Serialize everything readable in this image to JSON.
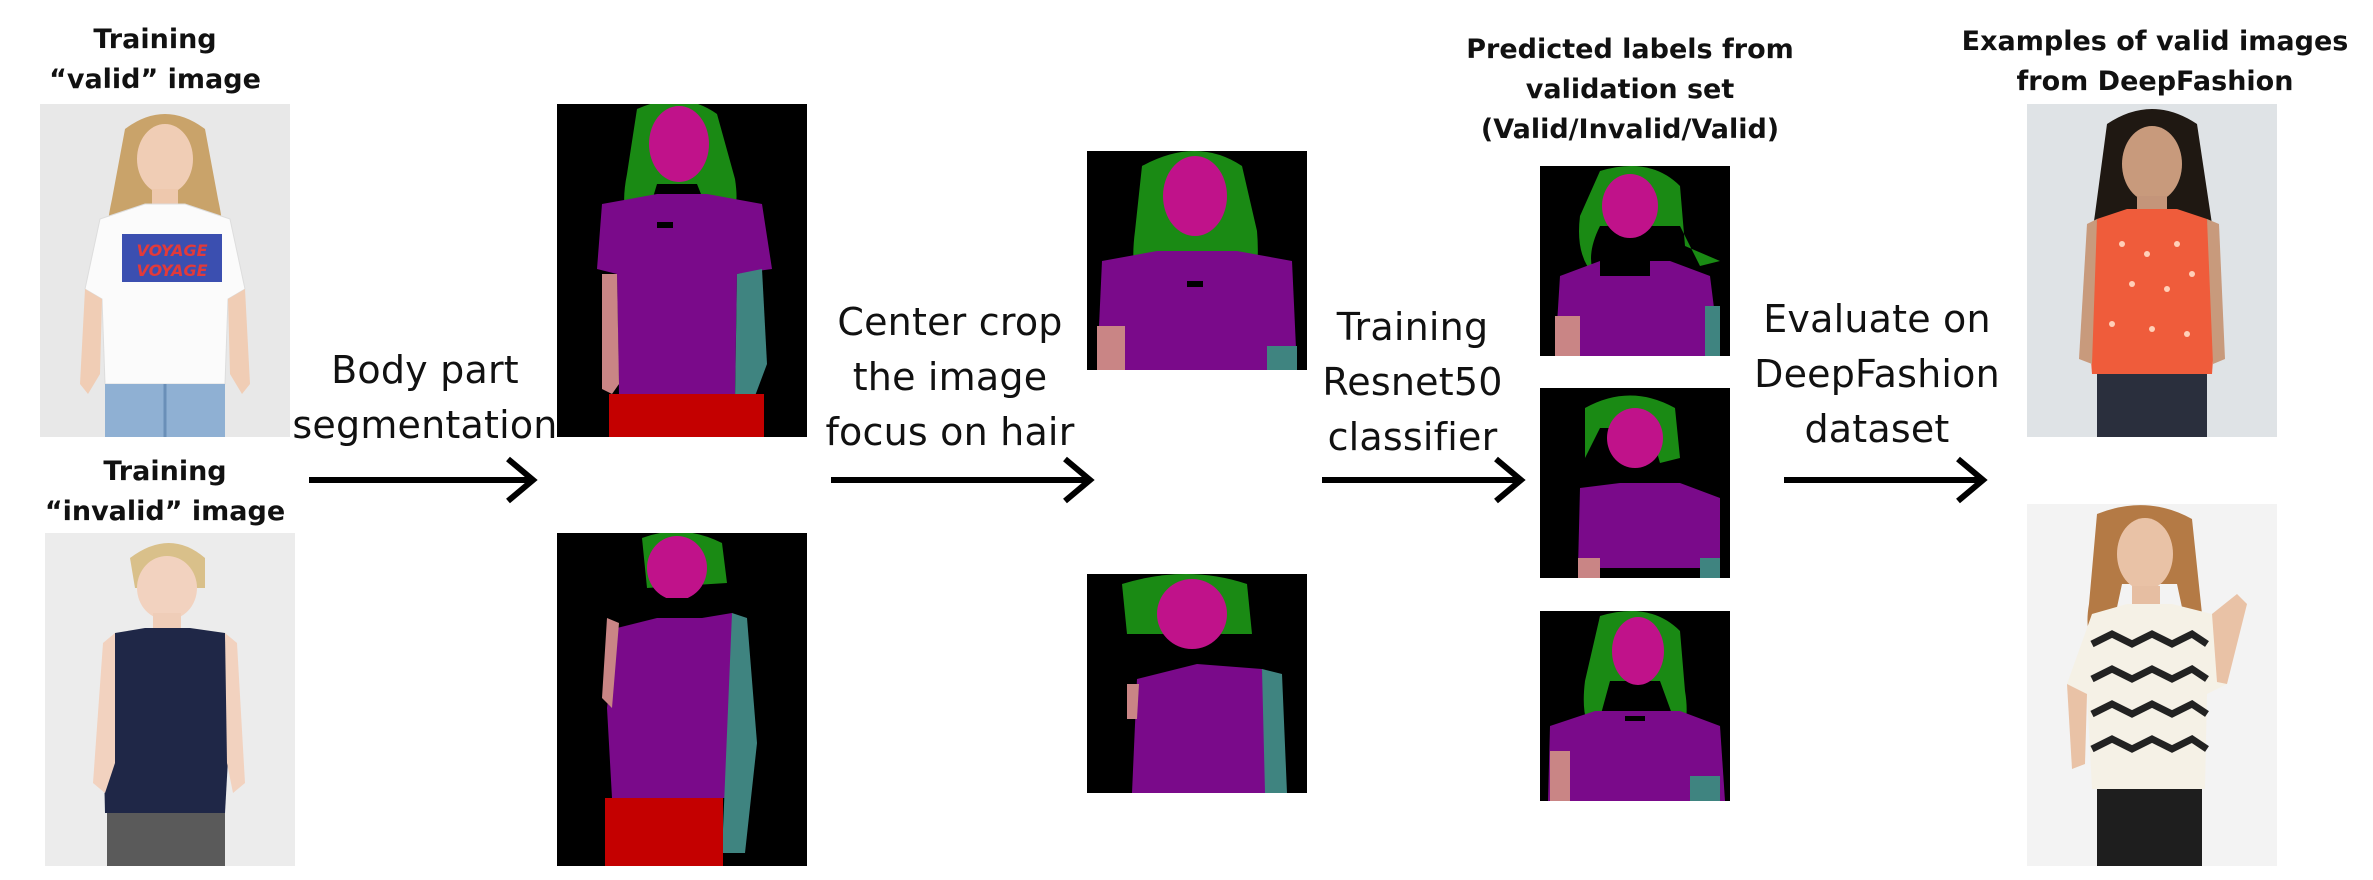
{
  "labels": {
    "training_valid_line1": "Training",
    "training_valid_line2": "“valid” image",
    "training_invalid_line1": "Training",
    "training_invalid_line2": "“invalid” image",
    "predicted_line1": "Predicted labels from",
    "predicted_line2": "validation set",
    "predicted_line3": "(Valid/Invalid/Valid)",
    "examples_line1": "Examples of valid images",
    "examples_line2": "from DeepFashion"
  },
  "stages": {
    "segmentation_line1": "Body part",
    "segmentation_line2": "segmentation",
    "crop_line1": "Center crop",
    "crop_line2": "the image",
    "crop_line3": "focus on hair",
    "train_line1": "Training",
    "train_line2": "Resnet50",
    "train_line3": "classifier",
    "eval_line1": "Evaluate on",
    "eval_line2": "DeepFashion",
    "eval_line3": "dataset"
  },
  "shirt_text": "VOYAGE VOYAGE",
  "colors": {
    "hair": "#1a8a14",
    "face": "#c0128a",
    "torso": "#7a0a8a",
    "left_arm": "#c98585",
    "right_arm": "#3f8480",
    "pants": "#c40000",
    "neck": "#000000",
    "background": "#000000"
  }
}
